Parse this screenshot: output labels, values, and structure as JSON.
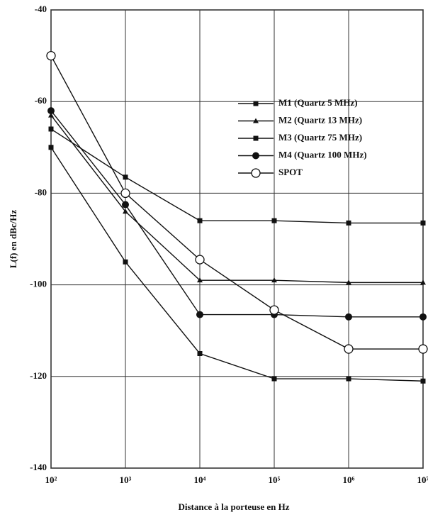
{
  "chart_data": {
    "type": "line",
    "xlabel": "Distance à la porteuse en Hz",
    "ylabel": "L(f) en dBc/Hz",
    "x": [
      100,
      1000,
      10000,
      100000,
      1000000,
      10000000
    ],
    "xlim": [
      100,
      10000000
    ],
    "xticks": [
      {
        "value": 100,
        "label": "10²"
      },
      {
        "value": 1000,
        "label": "10³"
      },
      {
        "value": 10000,
        "label": "10⁴"
      },
      {
        "value": 100000,
        "label": "10⁵"
      },
      {
        "value": 1000000,
        "label": "10⁶"
      },
      {
        "value": 10000000,
        "label": "10⁷"
      }
    ],
    "xscale": "log",
    "ylim": [
      -140,
      -40
    ],
    "yticks": [
      -40,
      -60,
      -80,
      -100,
      -120,
      -140
    ],
    "grid": true,
    "legend": "upper right",
    "series": [
      {
        "name": "M1 (Quartz 5 MHz)",
        "color": "#111111",
        "marker": "square",
        "values": [
          -70,
          -95,
          -115,
          -120.5,
          -120.5,
          -121
        ]
      },
      {
        "name": "M2 (Quartz 13 MHz)",
        "color": "#111111",
        "marker": "triangle",
        "values": [
          -63,
          -84,
          -99,
          -99,
          -99.5,
          -99.5
        ]
      },
      {
        "name": "M3 (Quartz 75 MHz)",
        "color": "#111111",
        "marker": "square",
        "values": [
          -66,
          -76.5,
          -86,
          -86,
          -86.5,
          -86.5
        ]
      },
      {
        "name": "M4 (Quartz 100 MHz)",
        "color": "#111111",
        "marker": "circle",
        "values": [
          -62,
          -82.5,
          -106.5,
          -106.5,
          -107,
          -107
        ]
      },
      {
        "name": "SPOT",
        "color": "#111111",
        "marker": "open-circle",
        "values": [
          -50,
          -80,
          -94.5,
          -105.5,
          -114,
          -114
        ]
      }
    ]
  }
}
